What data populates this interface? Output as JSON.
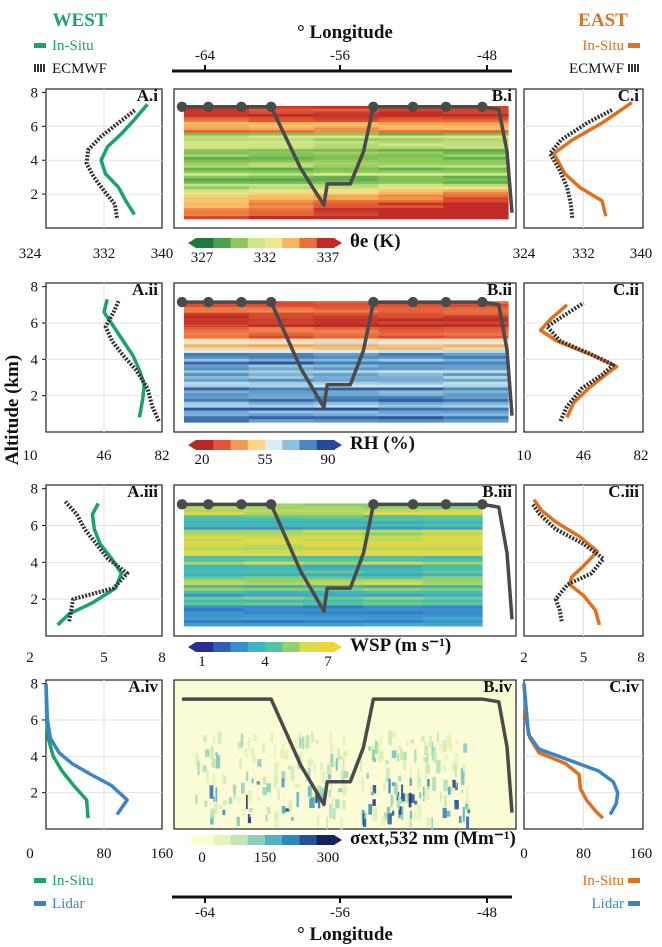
{
  "headers": {
    "west": "WEST",
    "east": "EAST",
    "west_color": "#1aa36a",
    "east_color": "#e0701e"
  },
  "longitude_axis": {
    "label": "° Longitude",
    "ticks": [
      "-64",
      "-56",
      "-48"
    ]
  },
  "altitude_label": "Altitude (km)",
  "altitude_ticks": [
    "2",
    "4",
    "6",
    "8"
  ],
  "legends": {
    "west_top": [
      "In-Situ",
      "ECMWF"
    ],
    "east_top": [
      "In-Situ",
      "ECMWF"
    ],
    "west_bottom": [
      "In-Situ",
      "Lidar"
    ],
    "east_bottom": [
      "In-Situ",
      "Lidar"
    ]
  },
  "colors": {
    "insitu_west": "#1aa36a",
    "insitu_east": "#e0701e",
    "ecmwf": "#333333",
    "lidar": "#3a85c8",
    "flight_track": "#4a4a4a"
  },
  "chart_data": [
    {
      "row": "i",
      "variable_label": "θe (K)",
      "colorbar_ticks": [
        "327",
        "332",
        "337"
      ],
      "colorbar_colors": [
        "#1e7a3c",
        "#4aa24e",
        "#8ec85a",
        "#cfe588",
        "#f3e68a",
        "#f7b65c",
        "#ea7038",
        "#c22a26"
      ],
      "profile_xticks": [
        "324",
        "332",
        "340"
      ],
      "profile_xlim": [
        324,
        340
      ],
      "panels": [
        {
          "label": "A.i",
          "type": "line",
          "series": [
            {
              "name": "In-Situ",
              "color": "insitu_west",
              "x": [
                336.2,
                335.0,
                334.0,
                332.2,
                331.6,
                332.5,
                334.5,
                336.2,
                338.0
              ],
              "y": [
                0.8,
                1.6,
                2.4,
                3.2,
                4.0,
                4.8,
                5.6,
                6.4,
                7.3
              ]
            },
            {
              "name": "ECMWF",
              "color": "ecmwf",
              "x": [
                333.8,
                333.5,
                332.0,
                330.6,
                329.6,
                329.8,
                331.6,
                334.0,
                336.4
              ],
              "y": [
                0.6,
                1.4,
                2.2,
                3.0,
                3.8,
                4.6,
                5.4,
                6.2,
                7.0
              ]
            }
          ]
        },
        {
          "label": "B.i",
          "type": "heatmap"
        },
        {
          "label": "C.i",
          "type": "line",
          "series": [
            {
              "name": "In-Situ",
              "color": "insitu_east",
              "x": [
                335.0,
                334.5,
                331.5,
                329.5,
                328.0,
                330.5,
                334.5,
                338.5
              ],
              "y": [
                0.7,
                1.6,
                2.4,
                3.2,
                4.4,
                5.2,
                6.2,
                7.4
              ]
            },
            {
              "name": "ECMWF",
              "color": "ecmwf",
              "x": [
                330.5,
                330.3,
                329.8,
                328.8,
                327.5,
                329.0,
                332.5,
                336.0
              ],
              "y": [
                0.6,
                1.4,
                2.4,
                3.4,
                4.4,
                5.2,
                6.2,
                7.0
              ]
            }
          ]
        }
      ]
    },
    {
      "row": "ii",
      "variable_label": "RH (%)",
      "colorbar_ticks": [
        "20",
        "55",
        "90"
      ],
      "colorbar_colors": [
        "#b62a24",
        "#e25536",
        "#f39a52",
        "#fbd58a",
        "#dcecf2",
        "#8fc1dc",
        "#4a88c0",
        "#25489a"
      ],
      "profile_xticks": [
        "10",
        "46",
        "82"
      ],
      "profile_xlim": [
        10,
        82
      ],
      "panels": [
        {
          "label": "A.ii",
          "type": "line",
          "series": [
            {
              "name": "In-Situ",
              "color": "insitu_west",
              "x": [
                68,
                70,
                71,
                68,
                64,
                58,
                52,
                46,
                48
              ],
              "y": [
                0.8,
                1.8,
                2.6,
                3.4,
                4.2,
                5.0,
                5.8,
                6.6,
                7.3
              ]
            },
            {
              "name": "ECMWF",
              "color": "ecmwf",
              "x": [
                80,
                76,
                73,
                66,
                58,
                51,
                47,
                52,
                55
              ],
              "y": [
                0.6,
                1.4,
                2.4,
                3.4,
                4.2,
                5.0,
                5.8,
                6.6,
                7.2
              ]
            }
          ]
        },
        {
          "label": "B.ii",
          "type": "heatmap"
        },
        {
          "label": "C.ii",
          "type": "line",
          "series": [
            {
              "name": "In-Situ",
              "color": "insitu_east",
              "x": [
                36,
                40,
                49,
                60,
                66,
                52,
                30,
                20,
                26,
                36
              ],
              "y": [
                0.8,
                1.6,
                2.4,
                3.2,
                3.6,
                4.2,
                5.0,
                5.6,
                6.2,
                7.0
              ]
            },
            {
              "name": "ECMWF",
              "color": "ecmwf",
              "x": [
                32,
                36,
                45,
                58,
                64,
                50,
                32,
                24,
                34,
                46
              ],
              "y": [
                0.6,
                1.4,
                2.4,
                3.2,
                3.7,
                4.3,
                5.0,
                5.8,
                6.4,
                7.1
              ]
            }
          ]
        }
      ]
    },
    {
      "row": "iii",
      "variable_label": "WSP (m s⁻¹)",
      "colorbar_ticks": [
        "1",
        "4",
        "7"
      ],
      "colorbar_colors": [
        "#2a2f8e",
        "#2d5fb8",
        "#3a8ecf",
        "#3fb4c2",
        "#54c4a0",
        "#92d070",
        "#d8dc4e",
        "#f1d43a"
      ],
      "profile_xticks": [
        "2",
        "5",
        "8"
      ],
      "profile_xlim": [
        2,
        8
      ],
      "panels": [
        {
          "label": "A.iii",
          "type": "line",
          "series": [
            {
              "name": "In-Situ",
              "color": "insitu_west",
              "x": [
                2.6,
                3.2,
                4.4,
                5.6,
                5.9,
                5.4,
                4.8,
                4.5,
                4.4,
                4.7
              ],
              "y": [
                0.6,
                1.2,
                1.8,
                2.6,
                3.4,
                4.2,
                5.0,
                5.8,
                6.6,
                7.2
              ]
            },
            {
              "name": "ECMWF",
              "color": "ecmwf",
              "x": [
                3.2,
                3.3,
                3.4,
                5.5,
                6.2,
                5.2,
                4.6,
                4.0,
                3.6,
                3.0
              ],
              "y": [
                0.8,
                1.4,
                2.0,
                2.6,
                3.4,
                4.2,
                5.0,
                5.8,
                6.6,
                7.3
              ]
            }
          ]
        },
        {
          "label": "B.iii",
          "type": "heatmap"
        },
        {
          "label": "C.iii",
          "type": "line",
          "series": [
            {
              "name": "In-Situ",
              "color": "insitu_east",
              "x": [
                5.8,
                5.6,
                5.0,
                4.3,
                4.4,
                5.0,
                5.7,
                4.8,
                3.6,
                2.9,
                2.5
              ],
              "y": [
                0.6,
                1.4,
                2.2,
                2.8,
                3.2,
                3.8,
                4.6,
                5.4,
                6.2,
                6.8,
                7.4
              ]
            },
            {
              "name": "ECMWF",
              "color": "ecmwf",
              "x": [
                3.9,
                3.8,
                3.6,
                4.2,
                5.4,
                6.0,
                5.0,
                3.6,
                2.8,
                2.4
              ],
              "y": [
                0.8,
                1.4,
                2.0,
                2.8,
                3.4,
                4.2,
                5.0,
                5.8,
                6.6,
                7.2
              ]
            }
          ]
        }
      ]
    },
    {
      "row": "iv",
      "variable_label": "σext,532 nm (Mm⁻¹)",
      "colorbar_ticks": [
        "0",
        "150",
        "300"
      ],
      "colorbar_colors": [
        "#fdfdd2",
        "#e8f4b8",
        "#c4e6b4",
        "#8ccfbc",
        "#52b2c4",
        "#2c88ba",
        "#24509c",
        "#16225e"
      ],
      "profile_xticks": [
        "0",
        "80",
        "160"
      ],
      "profile_xlim": [
        0,
        160
      ],
      "panels": [
        {
          "label": "A.iv",
          "type": "line",
          "series": [
            {
              "name": "In-Situ",
              "color": "insitu_west",
              "x": [
                58,
                56,
                38,
                22,
                10,
                3,
                1,
                0
              ],
              "y": [
                0.6,
                1.6,
                2.4,
                3.2,
                4.0,
                5.0,
                6.0,
                8.0
              ]
            },
            {
              "name": "Lidar",
              "color": "lidar",
              "x": [
                98,
                112,
                90,
                62,
                36,
                18,
                6,
                2,
                0
              ],
              "y": [
                0.8,
                1.6,
                2.4,
                3.0,
                3.6,
                4.2,
                5.0,
                6.0,
                8.0
              ]
            }
          ]
        },
        {
          "label": "B.iv",
          "type": "heatmap"
        },
        {
          "label": "C.iv",
          "type": "line",
          "series": [
            {
              "name": "In-Situ",
              "color": "insitu_east",
              "x": [
                106,
                96,
                84,
                76,
                74,
                56,
                20,
                8,
                3,
                0
              ],
              "y": [
                0.6,
                1.0,
                1.6,
                2.2,
                3.0,
                3.6,
                4.2,
                5.0,
                6.0,
                8.0
              ]
            },
            {
              "name": "Lidar",
              "color": "lidar",
              "x": [
                116,
                124,
                126,
                120,
                100,
                60,
                20,
                6,
                0
              ],
              "y": [
                0.8,
                1.4,
                2.0,
                2.6,
                3.2,
                3.8,
                4.4,
                5.2,
                8.0
              ]
            }
          ]
        }
      ]
    }
  ]
}
